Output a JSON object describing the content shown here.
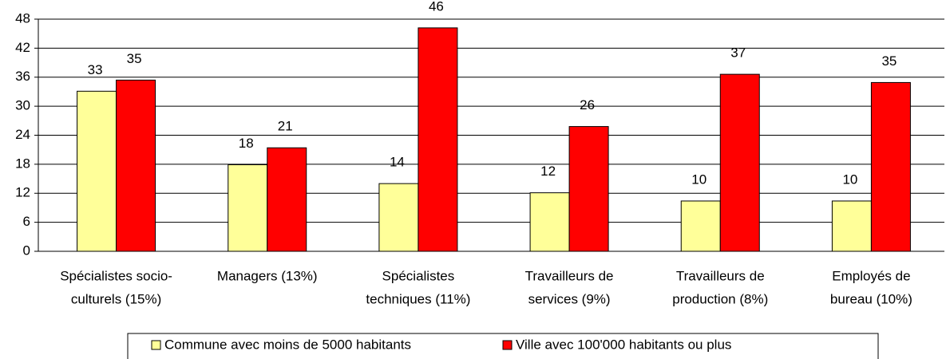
{
  "chart_data": {
    "type": "bar",
    "categories": [
      [
        "Spécialistes socio-",
        "culturels (15%)"
      ],
      [
        "Managers (13%)"
      ],
      [
        "Spécialistes",
        "techniques (11%)"
      ],
      [
        "Travailleurs de",
        "services (9%)"
      ],
      [
        "Travailleurs de",
        "production (8%)"
      ],
      [
        "Employés de",
        "bureau (10%)"
      ]
    ],
    "series": [
      {
        "name": "Commune avec moins de 5000 habitants",
        "color": "#ffff99",
        "values": [
          33.1,
          17.9,
          14.0,
          12.1,
          10.4,
          10.4
        ],
        "value_labels": [
          "33",
          "18",
          "14",
          "12",
          "10",
          "10"
        ]
      },
      {
        "name": "Ville avec 100'000 habitants ou plus",
        "color": "#ff0000",
        "values": [
          35.4,
          21.4,
          46.2,
          25.8,
          36.6,
          34.9
        ],
        "value_labels": [
          "35",
          "21",
          "46",
          "26",
          "37",
          "35"
        ]
      }
    ],
    "ylim": [
      0,
      48
    ],
    "yticks": [
      0,
      6,
      12,
      18,
      24,
      30,
      36,
      42,
      48
    ],
    "grid": true,
    "legend": "bottom"
  }
}
